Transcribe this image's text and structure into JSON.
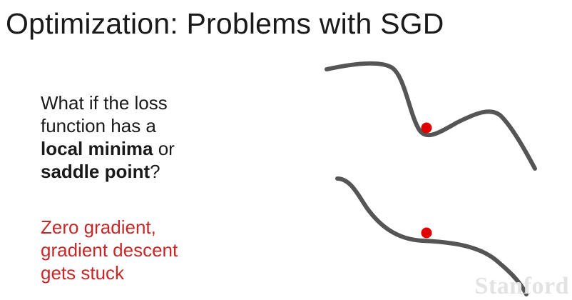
{
  "slide": {
    "title": "Optimization: Problems with SGD",
    "question": {
      "line1": "What if the loss",
      "line2": "function has a",
      "line3_bold": "local minima",
      "line3_rest": " or",
      "line4_bold": "saddle point",
      "line4_rest": "?"
    },
    "answer": {
      "line1": "Zero gradient,",
      "line2": "gradient descent",
      "line3": "gets stuck"
    },
    "watermark": "Stanford"
  },
  "colors": {
    "text": "#1a1a1a",
    "answer_text": "#c62828",
    "curve": "#555555",
    "point": "#e00000",
    "watermark": "#e3e3e3"
  },
  "diagram": {
    "top_curve_icon": "local-minimum-curve",
    "bottom_curve_icon": "saddle-point-curve"
  }
}
